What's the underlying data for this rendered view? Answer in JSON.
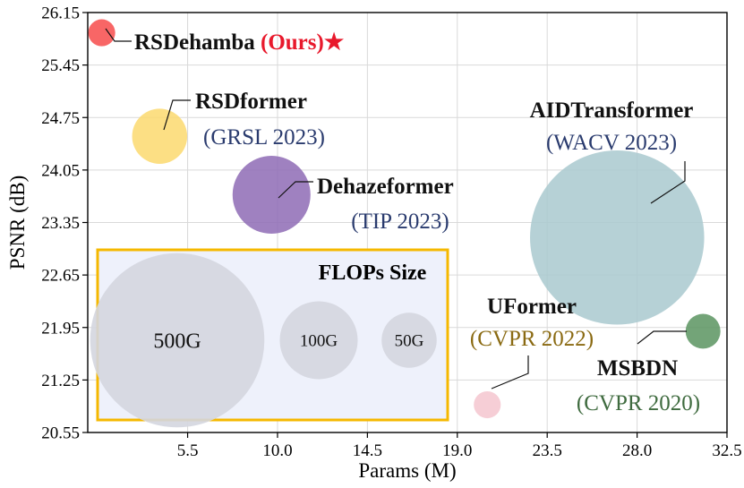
{
  "chart_data": {
    "type": "scatter",
    "subtype": "bubble",
    "xlabel": "Params (M)",
    "ylabel": "PSNR (dB)",
    "xlim": [
      0.5,
      32.5
    ],
    "ylim": [
      20.55,
      26.15
    ],
    "xticks": [
      "5.5",
      "10.0",
      "14.5",
      "19.0",
      "23.5",
      "28.0",
      "32.5"
    ],
    "yticks": [
      "20.55",
      "21.25",
      "21.95",
      "22.65",
      "23.35",
      "24.05",
      "24.75",
      "25.45",
      "26.15"
    ],
    "grid": true,
    "points": [
      {
        "name": "RSDehamba",
        "suffix": "(Ours)",
        "star": "★",
        "venue": "",
        "x": 1.2,
        "y": 25.88,
        "flops": 12,
        "color": "#f74b4b",
        "label_color": "#111111",
        "venue_color": "#e8192c"
      },
      {
        "name": "RSDformer",
        "venue": "(GRSL 2023)",
        "x": 4.1,
        "y": 24.5,
        "flops": 50,
        "color": "#fbd96e",
        "label_color": "#111111",
        "venue_color": "#2a3b6e"
      },
      {
        "name": "Dehazeformer",
        "venue": "(TIP 2023)",
        "x": 9.7,
        "y": 23.72,
        "flops": 100,
        "color": "#8e6bb5",
        "label_color": "#111111",
        "venue_color": "#2a3b6e"
      },
      {
        "name": "AIDTransformer",
        "venue": "(WACV 2023)",
        "x": 27.0,
        "y": 23.15,
        "flops": 500,
        "color": "#a9c9cf",
        "label_color": "#111111",
        "venue_color": "#2a3b6e"
      },
      {
        "name": "UFormer",
        "venue": "(CVPR 2022)",
        "x": 20.5,
        "y": 20.92,
        "flops": 12,
        "color": "#f5c6cf",
        "label_color": "#111111",
        "venue_color": "#8a6a12"
      },
      {
        "name": "MSBDN",
        "venue": "(CVPR 2020)",
        "x": 31.3,
        "y": 21.9,
        "flops": 20,
        "color": "#5a9460",
        "label_color": "#111111",
        "venue_color": "#3f6b3f"
      }
    ],
    "legend": {
      "title": "FLOPs Size",
      "position": "bottom-left",
      "border_color": "#f5b800",
      "fill_color": "#eef1fb",
      "bubble_color": "#d4d6df",
      "entries": [
        {
          "label": "500G",
          "flops": 500
        },
        {
          "label": "100G",
          "flops": 100
        },
        {
          "label": "50G",
          "flops": 50
        }
      ]
    }
  }
}
